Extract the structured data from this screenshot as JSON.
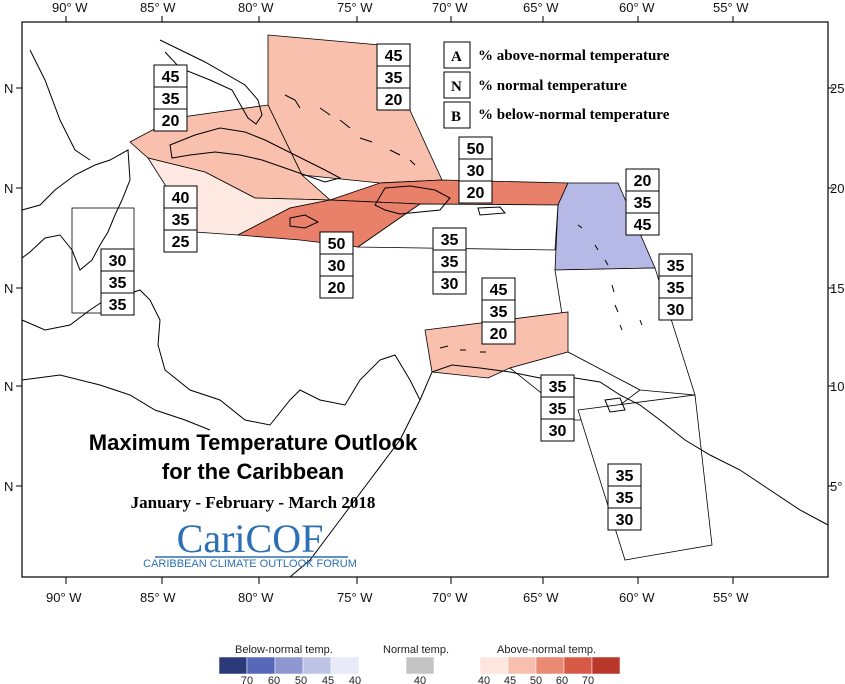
{
  "map": {
    "title_line1": "Maximum Temperature Outlook",
    "title_line2": "for the Caribbean",
    "period": "January - February - March 2018",
    "logo_text": "CariCOF",
    "logo_subtext": "CARIBBEAN CLIMATE OUTLOOK FORUM",
    "lon_labels_top": [
      "90° W",
      "85° W",
      "80° W",
      "75° W",
      "70° W",
      "65° W",
      "60° W",
      "55° W"
    ],
    "lon_labels_bottom": [
      "90° W",
      "85° W",
      "80° W",
      "75° W",
      "70° W",
      "65° W",
      "60° W",
      "55° W"
    ],
    "lat_labels_left": [
      "N",
      "N",
      "N",
      "N",
      "N"
    ],
    "lat_labels_right": [
      "25",
      "20",
      "15",
      "10",
      "5°"
    ],
    "colors": {
      "above_light": "#fde8e2",
      "above_45": "#f8c0ad",
      "above_50": "#e8806a",
      "below_45": "#b6b8e6",
      "normal": "#ffffff"
    }
  },
  "key": {
    "items": [
      {
        "letter": "A",
        "text": "% above-normal temperature"
      },
      {
        "letter": "N",
        "text": "% normal temperature"
      },
      {
        "letter": "B",
        "text": "% below-normal temperature"
      }
    ]
  },
  "regions": [
    {
      "name": "bahamas",
      "values": [
        "45",
        "35",
        "20"
      ]
    },
    {
      "name": "cuba",
      "values": [
        "45",
        "35",
        "20"
      ]
    },
    {
      "name": "hispaniola-pr",
      "values": [
        "50",
        "30",
        "20"
      ]
    },
    {
      "name": "lesser-antilles-north",
      "values": [
        "20",
        "35",
        "45"
      ]
    },
    {
      "name": "cayman-west",
      "values": [
        "40",
        "35",
        "25"
      ]
    },
    {
      "name": "jamaica",
      "values": [
        "50",
        "30",
        "20"
      ]
    },
    {
      "name": "caribbean-central",
      "values": [
        "35",
        "35",
        "30"
      ]
    },
    {
      "name": "belize",
      "values": [
        "30",
        "35",
        "35"
      ]
    },
    {
      "name": "windward-islands",
      "values": [
        "35",
        "35",
        "30"
      ]
    },
    {
      "name": "abc-islands",
      "values": [
        "45",
        "35",
        "20"
      ]
    },
    {
      "name": "trinidad",
      "values": [
        "35",
        "35",
        "30"
      ]
    },
    {
      "name": "guianas",
      "values": [
        "35",
        "35",
        "30"
      ]
    }
  ],
  "scale": {
    "below_title": "Below-normal temp.",
    "normal_title": "Normal temp.",
    "above_title": "Above-normal temp.",
    "below_ticks": [
      "70",
      "60",
      "50",
      "45",
      "40"
    ],
    "normal_ticks": [
      "40"
    ],
    "above_ticks": [
      "40",
      "45",
      "50",
      "60",
      "70"
    ],
    "below_colors": [
      "#2d3a7a",
      "#5868b8",
      "#8f97d0",
      "#bec3e8",
      "#e8eaf7"
    ],
    "normal_color": "#c4c4c4",
    "above_colors": [
      "#fde6df",
      "#f8bfae",
      "#ea8a73",
      "#d65a45",
      "#b8382a"
    ]
  }
}
